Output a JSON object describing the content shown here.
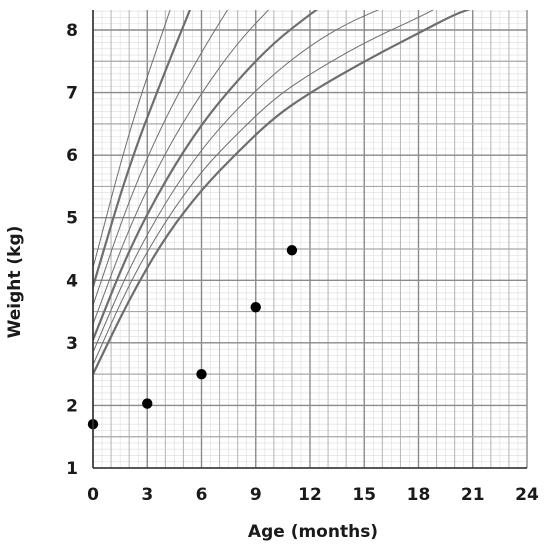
{
  "chart_data": {
    "type": "scatter",
    "title": "",
    "xlabel": "Age (months)",
    "ylabel": "Weight (kg)",
    "xlim": [
      0,
      24
    ],
    "ylim": [
      1,
      8.35
    ],
    "xticks": [
      "0",
      "3",
      "6",
      "9",
      "12",
      "15",
      "18",
      "21",
      "24"
    ],
    "yticks": [
      "1",
      "2",
      "3",
      "4",
      "5",
      "6",
      "7",
      "8"
    ],
    "grid": true,
    "points": [
      {
        "x": 0,
        "y": 1.7
      },
      {
        "x": 3,
        "y": 2.03
      },
      {
        "x": 6,
        "y": 2.5
      },
      {
        "x": 9,
        "y": 3.57
      },
      {
        "x": 11,
        "y": 4.48
      }
    ],
    "reference_curves": [
      {
        "values": [
          [
            0,
            2.5
          ],
          [
            2,
            3.7
          ],
          [
            4,
            4.7
          ],
          [
            6,
            5.45
          ],
          [
            8,
            6.05
          ],
          [
            10,
            6.6
          ],
          [
            12,
            7.0
          ],
          [
            15,
            7.5
          ],
          [
            18,
            7.95
          ],
          [
            20,
            8.25
          ],
          [
            21,
            8.35
          ]
        ]
      },
      {
        "values": [
          [
            0,
            2.65
          ],
          [
            2,
            3.95
          ],
          [
            4,
            4.95
          ],
          [
            6,
            5.75
          ],
          [
            8,
            6.35
          ],
          [
            10,
            6.9
          ],
          [
            12,
            7.3
          ],
          [
            15,
            7.8
          ],
          [
            18,
            8.2
          ],
          [
            19,
            8.35
          ]
        ]
      },
      {
        "values": [
          [
            0,
            2.85
          ],
          [
            2,
            4.2
          ],
          [
            4,
            5.25
          ],
          [
            6,
            6.1
          ],
          [
            8,
            6.75
          ],
          [
            10,
            7.3
          ],
          [
            12,
            7.75
          ],
          [
            14,
            8.1
          ],
          [
            16,
            8.35
          ]
        ]
      },
      {
        "values": [
          [
            0,
            3.05
          ],
          [
            2,
            4.5
          ],
          [
            4,
            5.6
          ],
          [
            6,
            6.5
          ],
          [
            8,
            7.2
          ],
          [
            10,
            7.8
          ],
          [
            12,
            8.25
          ],
          [
            12.5,
            8.35
          ]
        ]
      },
      {
        "values": [
          [
            0,
            3.3
          ],
          [
            2,
            4.85
          ],
          [
            4,
            6.05
          ],
          [
            6,
            7.0
          ],
          [
            8,
            7.8
          ],
          [
            9.8,
            8.35
          ]
        ]
      },
      {
        "values": [
          [
            0,
            3.6
          ],
          [
            2,
            5.3
          ],
          [
            4,
            6.6
          ],
          [
            6,
            7.65
          ],
          [
            7.5,
            8.35
          ]
        ]
      },
      {
        "values": [
          [
            0,
            3.9
          ],
          [
            2,
            5.85
          ],
          [
            4,
            7.35
          ],
          [
            5.4,
            8.35
          ]
        ]
      },
      {
        "values": [
          [
            0,
            4.2
          ],
          [
            2,
            6.4
          ],
          [
            4,
            8.1
          ],
          [
            4.3,
            8.35
          ]
        ]
      }
    ]
  }
}
